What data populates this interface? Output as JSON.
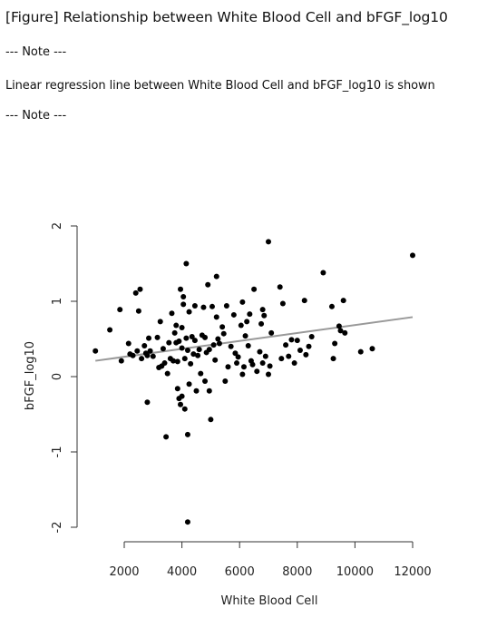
{
  "figure_title": "[Figure] Relationship between White Blood Cell and bFGF_log10",
  "note_open": "--- Note ---",
  "note_text": "Linear regression line between White Blood Cell and bFGF_log10 is shown",
  "note_close": "--- Note ---",
  "chart_data": {
    "type": "scatter",
    "title": "",
    "xlabel": "White Blood Cell",
    "ylabel": "bFGF_log10",
    "xlim": [
      1000,
      12000
    ],
    "ylim": [
      -2,
      2
    ],
    "xticks": [
      2000,
      4000,
      6000,
      8000,
      10000,
      12000
    ],
    "yticks": [
      -2,
      -1,
      0,
      1,
      2
    ],
    "grid": false,
    "colors": {
      "points": "#000000",
      "regression_line": "#999999"
    },
    "regression_line": {
      "x": [
        1000,
        12000
      ],
      "y": [
        0.21,
        0.79
      ]
    },
    "points": [
      [
        1000,
        0.34
      ],
      [
        1500,
        0.62
      ],
      [
        1850,
        0.89
      ],
      [
        1900,
        0.21
      ],
      [
        2150,
        0.44
      ],
      [
        2200,
        0.3
      ],
      [
        2300,
        0.28
      ],
      [
        2400,
        1.11
      ],
      [
        2450,
        0.34
      ],
      [
        2500,
        0.87
      ],
      [
        2550,
        1.16
      ],
      [
        2600,
        0.24
      ],
      [
        2700,
        0.41
      ],
      [
        2750,
        0.31
      ],
      [
        2800,
        0.28
      ],
      [
        2800,
        -0.34
      ],
      [
        2850,
        0.51
      ],
      [
        2900,
        0.34
      ],
      [
        3000,
        0.27
      ],
      [
        3150,
        0.52
      ],
      [
        3200,
        0.12
      ],
      [
        3250,
        0.73
      ],
      [
        3300,
        0.14
      ],
      [
        3350,
        0.37
      ],
      [
        3400,
        0.18
      ],
      [
        3450,
        -0.8
      ],
      [
        3500,
        0.04
      ],
      [
        3550,
        0.45
      ],
      [
        3600,
        0.24
      ],
      [
        3650,
        0.84
      ],
      [
        3700,
        0.21
      ],
      [
        3750,
        0.58
      ],
      [
        3800,
        0.45
      ],
      [
        3800,
        0.68
      ],
      [
        3850,
        0.2
      ],
      [
        3850,
        -0.16
      ],
      [
        3900,
        0.47
      ],
      [
        3900,
        -0.29
      ],
      [
        3950,
        1.16
      ],
      [
        3950,
        -0.37
      ],
      [
        4000,
        0.65
      ],
      [
        4000,
        -0.26
      ],
      [
        4000,
        0.38
      ],
      [
        4050,
        1.06
      ],
      [
        4050,
        0.96
      ],
      [
        4100,
        0.24
      ],
      [
        4100,
        -0.43
      ],
      [
        4150,
        1.5
      ],
      [
        4150,
        0.51
      ],
      [
        4200,
        0.35
      ],
      [
        4200,
        -0.77
      ],
      [
        4200,
        -1.93
      ],
      [
        4250,
        0.86
      ],
      [
        4250,
        -0.1
      ],
      [
        4300,
        0.17
      ],
      [
        4350,
        0.53
      ],
      [
        4400,
        0.3
      ],
      [
        4450,
        0.94
      ],
      [
        4450,
        0.48
      ],
      [
        4500,
        -0.19
      ],
      [
        4550,
        0.28
      ],
      [
        4600,
        0.36
      ],
      [
        4650,
        0.04
      ],
      [
        4700,
        0.55
      ],
      [
        4750,
        0.92
      ],
      [
        4800,
        0.52
      ],
      [
        4800,
        -0.06
      ],
      [
        4850,
        0.32
      ],
      [
        4900,
        1.22
      ],
      [
        4950,
        0.36
      ],
      [
        4950,
        -0.19
      ],
      [
        5000,
        -0.57
      ],
      [
        5050,
        0.93
      ],
      [
        5100,
        0.42
      ],
      [
        5150,
        0.22
      ],
      [
        5200,
        0.79
      ],
      [
        5200,
        1.33
      ],
      [
        5250,
        0.5
      ],
      [
        5300,
        0.44
      ],
      [
        5400,
        0.66
      ],
      [
        5450,
        0.57
      ],
      [
        5500,
        -0.06
      ],
      [
        5550,
        0.94
      ],
      [
        5600,
        0.13
      ],
      [
        5700,
        0.4
      ],
      [
        5800,
        0.82
      ],
      [
        5850,
        0.31
      ],
      [
        5900,
        0.18
      ],
      [
        5950,
        0.26
      ],
      [
        6050,
        0.68
      ],
      [
        6100,
        0.99
      ],
      [
        6100,
        0.03
      ],
      [
        6150,
        0.13
      ],
      [
        6200,
        0.54
      ],
      [
        6250,
        0.73
      ],
      [
        6300,
        0.41
      ],
      [
        6350,
        0.83
      ],
      [
        6400,
        0.21
      ],
      [
        6450,
        0.16
      ],
      [
        6500,
        1.16
      ],
      [
        6600,
        0.07
      ],
      [
        6700,
        0.33
      ],
      [
        6750,
        0.7
      ],
      [
        6800,
        0.89
      ],
      [
        6800,
        0.18
      ],
      [
        6850,
        0.81
      ],
      [
        6900,
        0.27
      ],
      [
        7000,
        1.79
      ],
      [
        7000,
        0.03
      ],
      [
        7050,
        0.14
      ],
      [
        7100,
        0.58
      ],
      [
        7400,
        1.19
      ],
      [
        7450,
        0.24
      ],
      [
        7500,
        0.97
      ],
      [
        7600,
        0.42
      ],
      [
        7700,
        0.27
      ],
      [
        7800,
        0.49
      ],
      [
        7900,
        0.18
      ],
      [
        8000,
        0.48
      ],
      [
        8100,
        0.35
      ],
      [
        8250,
        1.01
      ],
      [
        8300,
        0.29
      ],
      [
        8400,
        0.4
      ],
      [
        8500,
        0.53
      ],
      [
        8900,
        1.38
      ],
      [
        9200,
        0.93
      ],
      [
        9250,
        0.24
      ],
      [
        9300,
        0.44
      ],
      [
        9450,
        0.67
      ],
      [
        9500,
        0.61
      ],
      [
        9600,
        1.01
      ],
      [
        9650,
        0.58
      ],
      [
        10200,
        0.33
      ],
      [
        10600,
        0.37
      ],
      [
        12000,
        1.61
      ]
    ]
  }
}
